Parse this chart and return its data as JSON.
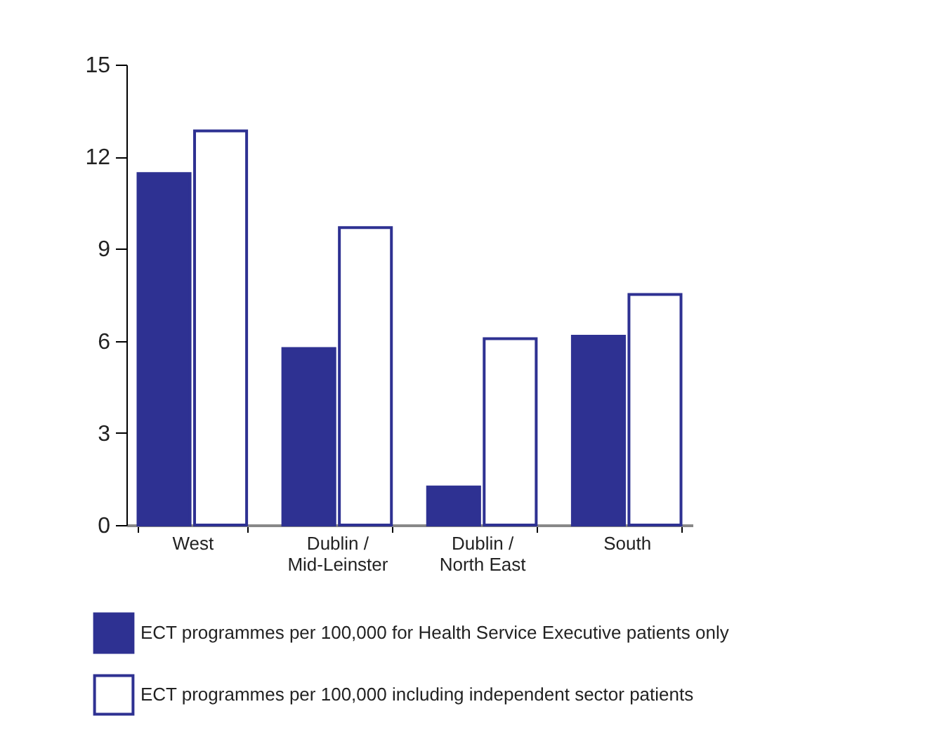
{
  "chart_data": {
    "type": "bar",
    "categories": [
      "West",
      "Dublin /\nMid-Leinster",
      "Dublin /\nNorth East",
      "South"
    ],
    "series": [
      {
        "name": "ECT programmes per 100,000 for Health Service Executive patients only",
        "color": "#2e3192",
        "values": [
          11.45,
          5.75,
          1.24,
          6.15
        ]
      },
      {
        "name": "ECT programmes per 100,000 including independent sector patients",
        "color": "#ffffff",
        "values": [
          12.84,
          9.69,
          6.07,
          7.51
        ]
      }
    ],
    "ylim": [
      0,
      15
    ],
    "yticks": [
      0,
      3,
      6,
      9,
      12,
      15
    ],
    "grid": false,
    "legend": "bottom left"
  }
}
